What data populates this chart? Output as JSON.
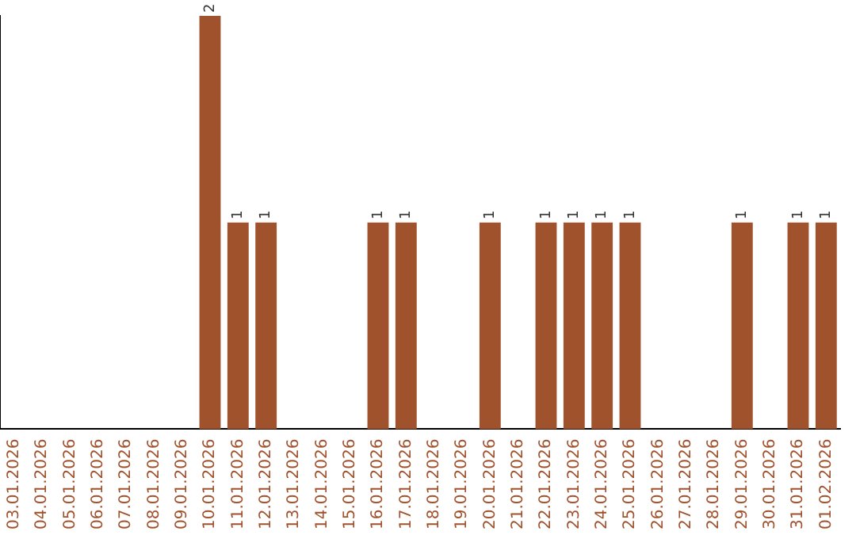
{
  "chart_data": {
    "type": "bar",
    "categories": [
      "03.01.2026",
      "04.01.2026",
      "05.01.2026",
      "06.01.2026",
      "07.01.2026",
      "08.01.2026",
      "09.01.2026",
      "10.01.2026",
      "11.01.2026",
      "12.01.2026",
      "13.01.2026",
      "14.01.2026",
      "15.01.2026",
      "16.01.2026",
      "17.01.2026",
      "18.01.2026",
      "19.01.2026",
      "20.01.2026",
      "21.01.2026",
      "22.01.2026",
      "23.01.2026",
      "24.01.2026",
      "25.01.2026",
      "26.01.2026",
      "27.01.2026",
      "28.01.2026",
      "29.01.2026",
      "30.01.2026",
      "31.01.2026",
      "01.02.2026"
    ],
    "values": [
      0,
      0,
      0,
      0,
      0,
      0,
      0,
      2,
      1,
      1,
      0,
      0,
      0,
      1,
      1,
      0,
      0,
      1,
      0,
      1,
      1,
      1,
      1,
      0,
      0,
      0,
      1,
      0,
      1,
      1
    ],
    "value_labels": [
      null,
      null,
      null,
      null,
      null,
      null,
      null,
      "2",
      "1",
      "1",
      null,
      null,
      null,
      "1",
      "1",
      null,
      null,
      "1",
      null,
      "1",
      "1",
      "1",
      "1",
      null,
      null,
      null,
      "1",
      null,
      "1",
      "1"
    ],
    "color": "#a0522d",
    "ylim": [
      0,
      2
    ],
    "tick_labels": "x",
    "grid": false,
    "legend": false
  }
}
